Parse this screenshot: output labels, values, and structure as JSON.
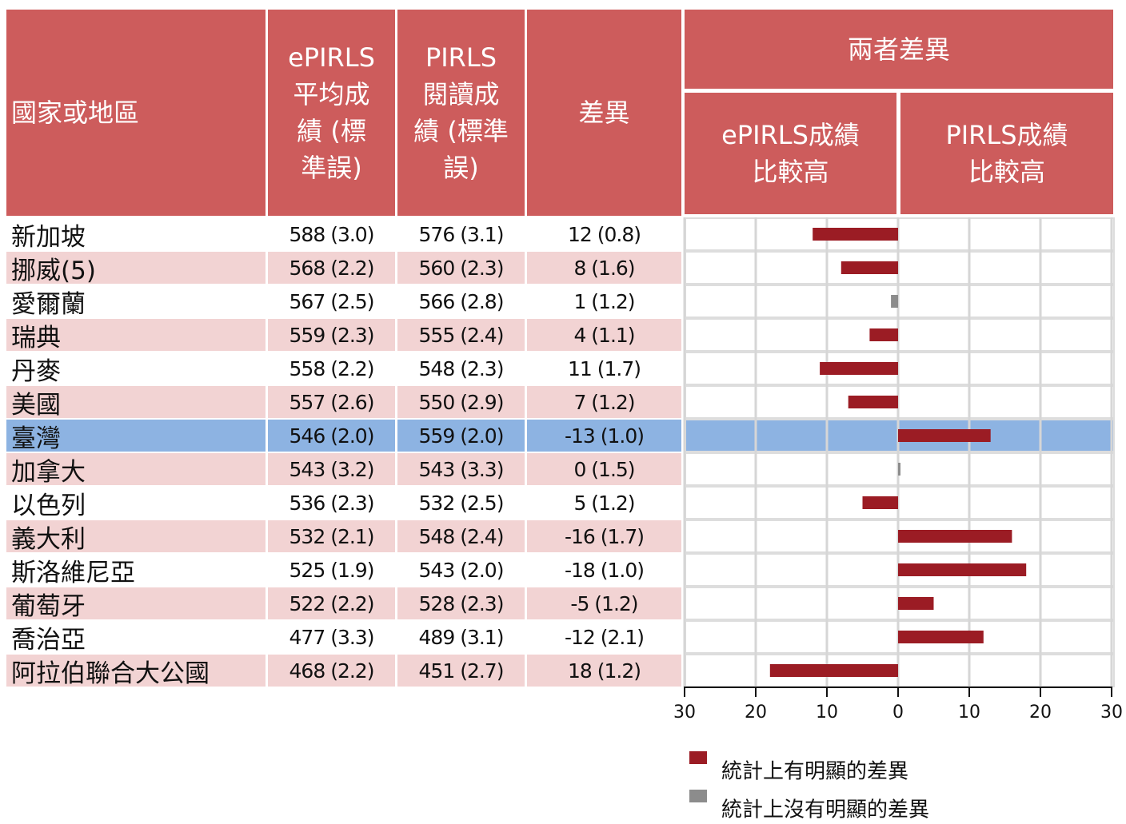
{
  "table": {
    "headers": [
      "國家或地區",
      [
        "ePIRLS",
        "平均成",
        "績 (標",
        "準誤)"
      ],
      [
        "PIRLS",
        "閱讀成",
        "績 (標準",
        "誤)"
      ],
      "差異"
    ],
    "group_header": "兩者差異",
    "sub_headers": [
      [
        "ePIRLS成績",
        "比較高"
      ],
      [
        "PIRLS成績",
        "比較高"
      ]
    ],
    "rows": [
      [
        "新加坡",
        "588 (3.0)",
        "576 (3.1)",
        "12 (0.8)"
      ],
      [
        "挪威(5)",
        "568 (2.2)",
        "560 (2.3)",
        "8 (1.6)"
      ],
      [
        "愛爾蘭",
        "567 (2.5)",
        "566 (2.8)",
        "1 (1.2)"
      ],
      [
        "瑞典",
        "559 (2.3)",
        "555 (2.4)",
        "4 (1.1)"
      ],
      [
        "丹麥",
        "558 (2.2)",
        "548 (2.3)",
        "11 (1.7)"
      ],
      [
        "美國",
        "557 (2.6)",
        "550 (2.9)",
        "7 (1.2)"
      ],
      [
        "臺灣",
        "546 (2.0)",
        "559 (2.0)",
        "-13 (1.0)"
      ],
      [
        "加拿大",
        "543 (3.2)",
        "543 (3.3)",
        "0 (1.5)"
      ],
      [
        "以色列",
        "536 (2.3)",
        "532 (2.5)",
        "5 (1.2)"
      ],
      [
        "義大利",
        "532 (2.1)",
        "548 (2.4)",
        "-16 (1.7)"
      ],
      [
        "斯洛維尼亞",
        "525 (1.9)",
        "543 (2.0)",
        "-18 (1.0)"
      ],
      [
        "葡萄牙",
        "522 (2.2)",
        "528 (2.3)",
        "-5 (1.2)"
      ],
      [
        "喬治亞",
        "477 (3.3)",
        "489 (3.1)",
        "-12 (2.1)"
      ],
      [
        "阿拉伯聯合大公國",
        "468 (2.2)",
        "451 (2.7)",
        "18 (1.2)"
      ]
    ],
    "highlight_row": 6,
    "highlight_color": "#8db3e2",
    "stripe_color": "#f2d3d3",
    "header_color": "#cd5c5c"
  },
  "chart_data": {
    "type": "bar",
    "orientation": "horizontal",
    "values": [
      12,
      8,
      1,
      4,
      11,
      7,
      -13,
      0,
      5,
      -16,
      -18,
      -5,
      -12,
      18
    ],
    "colors": [
      "#9b1c24",
      "#9b1c24",
      "#8c8c8c",
      "#9b1c24",
      "#9b1c24",
      "#9b1c24",
      "#9b1c24",
      "#8c8c8c",
      "#9b1c24",
      "#9b1c24",
      "#9b1c24",
      "#9b1c24",
      "#9b1c24",
      "#9b1c24"
    ],
    "xlim": [
      30,
      -30
    ],
    "xticks": [
      30,
      20,
      10,
      0,
      {
        "value": -10,
        "label": "10"
      },
      {
        "value": -20,
        "label": "20"
      },
      {
        "value": -30,
        "label": "30"
      }
    ],
    "grid": true,
    "legend": [
      {
        "label": "統計上有明顯的差異",
        "color": "#9b1c24"
      },
      {
        "label": "統計上沒有明顯的差異",
        "color": "#8c8c8c"
      }
    ]
  }
}
